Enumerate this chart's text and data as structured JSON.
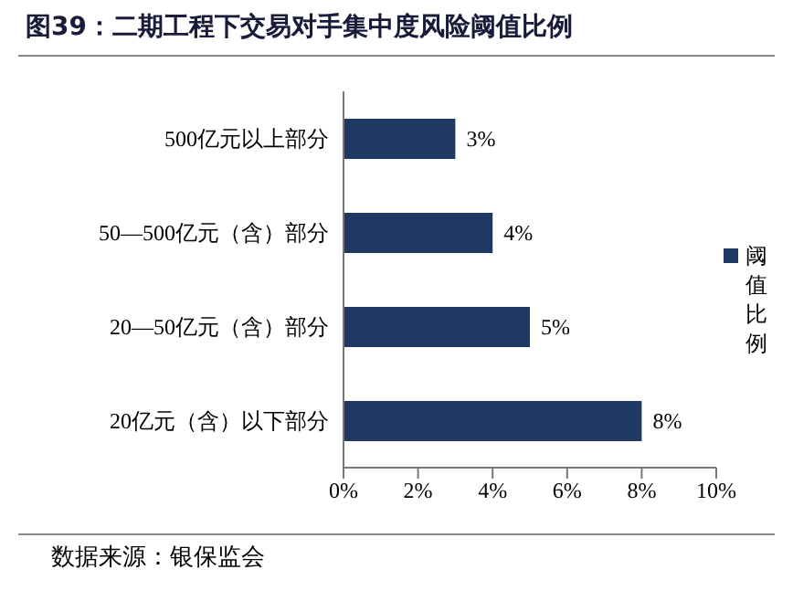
{
  "chart_data": {
    "type": "bar",
    "orientation": "horizontal",
    "title": "图39：二期工程下交易对手集中度风险阈值比例",
    "annotations": [
      "数据来源：银保监会"
    ],
    "categories": [
      "500亿元以上部分",
      "50—500亿元（含）部分",
      "20—50亿元（含）部分",
      "20亿元（含）以下部分"
    ],
    "series": [
      {
        "name": "阈值比例",
        "color": "#1f3864",
        "values": [
          3,
          4,
          5,
          8
        ],
        "value_labels": [
          "3%",
          "4%",
          "5%",
          "8%"
        ]
      }
    ],
    "xlim": [
      0,
      10
    ],
    "xticks": [
      {
        "value": 0,
        "label": "0%"
      },
      {
        "value": 2,
        "label": "2%"
      },
      {
        "value": 4,
        "label": "4%"
      },
      {
        "value": 6,
        "label": "6%"
      },
      {
        "value": 8,
        "label": "8%"
      },
      {
        "value": 10,
        "label": "10%"
      }
    ],
    "grid": false,
    "legend": "right"
  }
}
